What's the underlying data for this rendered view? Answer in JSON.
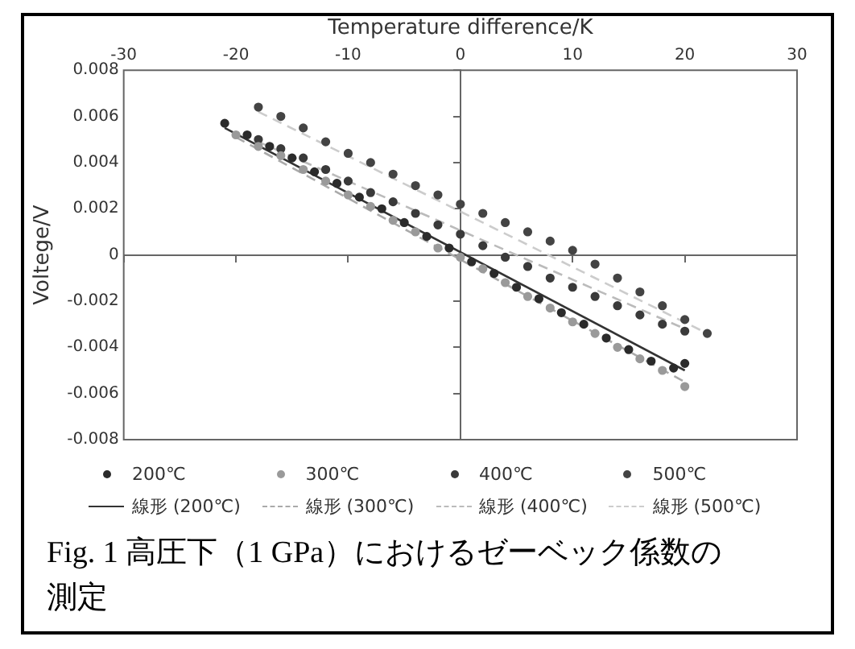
{
  "chart_data": {
    "type": "scatter",
    "xlabel": "Temperature difference/K",
    "ylabel": "Voltege/V",
    "xlim": [
      -30,
      30
    ],
    "xticks": [
      -30,
      -20,
      -10,
      0,
      10,
      20,
      30
    ],
    "ylim": [
      -0.008,
      0.008
    ],
    "yticks": [
      -0.008,
      -0.006,
      -0.004,
      -0.002,
      0,
      0.002,
      0.004,
      0.006,
      0.008
    ],
    "legend": "bottom",
    "marker": "circle",
    "series": [
      {
        "name": "200℃",
        "type": "scatter",
        "color": "#2b2b2b",
        "x": [
          -21,
          -19,
          -17,
          -15,
          -13,
          -11,
          -9,
          -7,
          -5,
          -3,
          -1,
          1,
          3,
          5,
          7,
          9,
          11,
          13,
          15,
          17,
          19,
          20
        ],
        "values": [
          0.0057,
          0.0052,
          0.0047,
          0.0042,
          0.0036,
          0.0031,
          0.0025,
          0.002,
          0.0014,
          0.0008,
          0.0003,
          -0.0003,
          -0.0008,
          -0.0014,
          -0.0019,
          -0.0025,
          -0.003,
          -0.0036,
          -0.0041,
          -0.0046,
          -0.0049,
          -0.0047
        ]
      },
      {
        "name": "300℃",
        "type": "scatter",
        "color": "#9a9a9a",
        "x": [
          -20,
          -18,
          -16,
          -14,
          -12,
          -10,
          -8,
          -6,
          -4,
          -2,
          0,
          2,
          4,
          6,
          8,
          10,
          12,
          14,
          16,
          18,
          20
        ],
        "values": [
          0.0052,
          0.0047,
          0.0043,
          0.0037,
          0.0032,
          0.0026,
          0.0021,
          0.0015,
          0.001,
          0.0003,
          -0.0001,
          -0.0006,
          -0.0012,
          -0.0018,
          -0.0023,
          -0.0029,
          -0.0034,
          -0.004,
          -0.0045,
          -0.005,
          -0.0057
        ]
      },
      {
        "name": "400℃",
        "type": "scatter",
        "color": "#3a3a3a",
        "x": [
          -18,
          -16,
          -14,
          -12,
          -10,
          -8,
          -6,
          -4,
          -2,
          0,
          2,
          4,
          6,
          8,
          10,
          12,
          14,
          16,
          18,
          20
        ],
        "values": [
          0.005,
          0.0046,
          0.0042,
          0.0037,
          0.0032,
          0.0027,
          0.0023,
          0.0018,
          0.0013,
          0.0009,
          0.0004,
          -0.0001,
          -0.0005,
          -0.001,
          -0.0014,
          -0.0018,
          -0.0022,
          -0.0026,
          -0.003,
          -0.0033
        ]
      },
      {
        "name": "500℃",
        "type": "scatter",
        "color": "#444444",
        "x": [
          -18,
          -16,
          -14,
          -12,
          -10,
          -8,
          -6,
          -4,
          -2,
          0,
          2,
          4,
          6,
          8,
          10,
          12,
          14,
          16,
          18,
          20,
          22
        ],
        "values": [
          0.0064,
          0.006,
          0.0055,
          0.0049,
          0.0044,
          0.004,
          0.0035,
          0.003,
          0.0026,
          0.0022,
          0.0018,
          0.0014,
          0.001,
          0.0006,
          0.0002,
          -0.0004,
          -0.001,
          -0.0016,
          -0.0022,
          -0.0028,
          -0.0034
        ]
      },
      {
        "name": "線形 (200℃)",
        "type": "line",
        "marker": "none",
        "line_style": "solid",
        "color": "#333333",
        "x": [
          -21,
          20
        ],
        "values": [
          0.0055,
          -0.005
        ]
      },
      {
        "name": "線形 (300℃)",
        "type": "line",
        "marker": "none",
        "line_style": "dashed",
        "color": "#aaaaaa",
        "x": [
          -20,
          20
        ],
        "values": [
          0.0051,
          -0.0055
        ]
      },
      {
        "name": "線形 (400℃)",
        "type": "line",
        "marker": "none",
        "line_style": "dashed",
        "color": "#bbbbbb",
        "x": [
          -18,
          20
        ],
        "values": [
          0.0049,
          -0.0032
        ]
      },
      {
        "name": "線形 (500℃)",
        "type": "line",
        "marker": "none",
        "line_style": "dashed",
        "color": "#cccccc",
        "x": [
          -18,
          22
        ],
        "values": [
          0.0062,
          -0.0034
        ]
      }
    ],
    "annotations": [
      "Fig. 1  高圧下（1 GPa）におけるゼーベック係数の測定"
    ]
  }
}
